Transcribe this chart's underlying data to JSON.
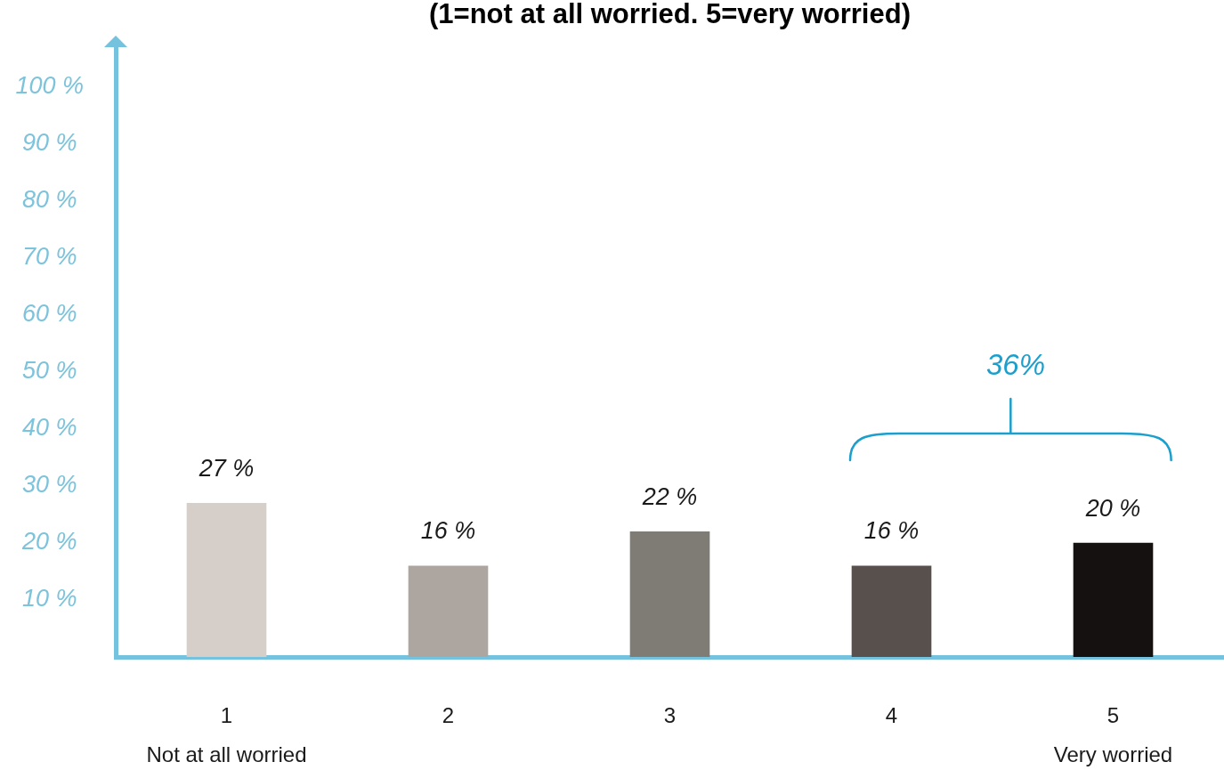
{
  "chart_data": {
    "type": "bar",
    "title": "(1=not at all worried. 5=very worried)",
    "categories": [
      "1\nNot at all worried",
      "2",
      "3",
      "4",
      "5\nVery worried"
    ],
    "values": [
      27,
      16,
      22,
      16,
      20
    ],
    "colors": [
      "#d6cfc9",
      "#ada59f",
      "#7f7b75",
      "#57504c",
      "#141110"
    ],
    "value_labels": [
      "27 %",
      "16 %",
      "22 %",
      "16 %",
      "20 %"
    ],
    "ylim": [
      0,
      107
    ],
    "yticks": [
      {
        "value": 10,
        "label": "10 %"
      },
      {
        "value": 20,
        "label": "20 %"
      },
      {
        "value": 30,
        "label": "30 %"
      },
      {
        "value": 40,
        "label": "40 %"
      },
      {
        "value": 50,
        "label": "50 %"
      },
      {
        "value": 60,
        "label": "60 %"
      },
      {
        "value": 70,
        "label": "70 %"
      },
      {
        "value": 80,
        "label": "80 %"
      },
      {
        "value": 90,
        "label": "90 %"
      },
      {
        "value": 100,
        "label": "100 %"
      }
    ],
    "annotations": [
      "36%"
    ]
  }
}
